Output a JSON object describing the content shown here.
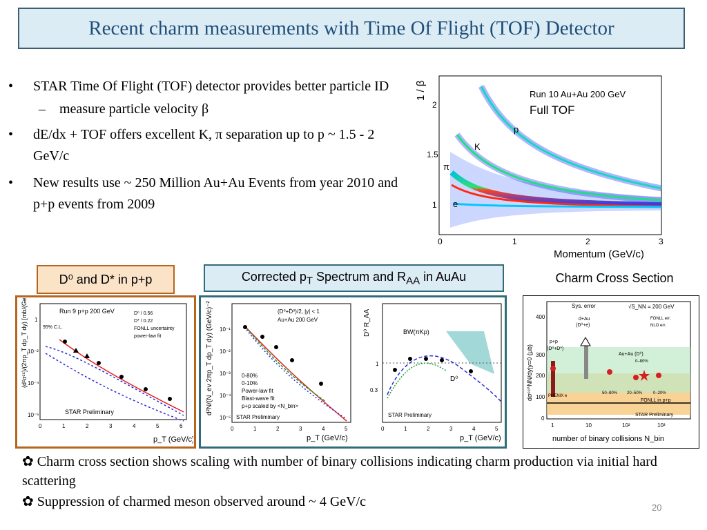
{
  "title": "Recent charm measurements with Time Of Flight (TOF) Detector",
  "bullets": [
    {
      "marker": "•",
      "text": "STAR Time Of Flight (TOF) detector provides better particle ID",
      "level": 1
    },
    {
      "marker": "–",
      "text": "measure particle velocity β",
      "level": 2
    },
    {
      "marker": "•",
      "text": "dE/dx + TOF  offers excellent K, π separation up to p ~ 1.5 - 2 GeV/c",
      "level": 1
    },
    {
      "marker": "•",
      "text": "New results use ~ 250 Million Au+Au Events from year 2010 and p+p events from 2009",
      "level": 1
    }
  ],
  "panel_labels": {
    "pp": "D⁰ and D* in p+p",
    "auau_prefix": "Corrected p",
    "auau_sub1": "T",
    "auau_mid": " Spectrum and R",
    "auau_sub2": "AA",
    "auau_suffix": " in AuAu",
    "cross": "Charm Cross Section"
  },
  "tof_plot": {
    "ylabel": "1 / β",
    "xlabel": "Momentum (GeV/c)",
    "run": "Run 10 Au+Au 200 GeV",
    "subtitle": "Full TOF",
    "species": [
      "p",
      "K",
      "π",
      "e"
    ],
    "xticks": [
      "0",
      "1",
      "2",
      "3"
    ],
    "yticks": [
      "1",
      "1.5",
      "2"
    ]
  },
  "pp_plot": {
    "ylabel": "(d²σᶜᶜ)/(2πp_T dp_T dy) [mb/(GeV/c)²]",
    "xlabel": "p_T (GeV/c)",
    "run": "Run 9 p+p 200 GeV",
    "cl": "95% C.L.",
    "legend": [
      "D⁰ / 0.56",
      "D* / 0.22",
      "FONLL uncertainty",
      "power-law fit"
    ],
    "footer": "STAR Preliminary",
    "xticks": [
      "0",
      "1",
      "2",
      "3",
      "4",
      "5",
      "6"
    ],
    "yticks": [
      "1",
      "10⁻²",
      "10⁻⁴",
      "10⁻⁶"
    ]
  },
  "spectrum_plot": {
    "ylabel": "d²N/(N_ev 2πp_T dp_T dy) (GeV/c)⁻²",
    "xlabel": "p_T (GeV/c)",
    "header1": "(D⁰+D̄⁰)/2, |y| < 1",
    "header2": "Au+Au 200 GeV",
    "legend": [
      "0-80%",
      "0-10%",
      "Power-law fit",
      "Blast-wave fit",
      "p+p scaled by <N_bin>"
    ],
    "footer": "STAR Preliminary",
    "xticks": [
      "0",
      "1",
      "2",
      "3",
      "4",
      "5"
    ],
    "yticks": [
      "10⁻¹",
      "10⁻²",
      "10⁻³",
      "10⁻⁴",
      "10⁻⁵"
    ]
  },
  "raa_plot": {
    "ylabel": "D⁰ R_AA",
    "xlabel": "p_T (GeV/c)",
    "model": "BW(πKp)",
    "particle": "D⁰",
    "footer": "STAR Preliminary",
    "xticks": [
      "0",
      "1",
      "2",
      "3",
      "4",
      "5"
    ],
    "yticks": [
      "0.3",
      "1"
    ]
  },
  "cross_plot": {
    "ylabel": "dσᶜᶜ^NN/dy|y=0 (μb)",
    "xlabel": "number of binary collisions N_bin",
    "legend_sys": "Sys. error",
    "energy": "√S_NN = 200 GeV",
    "fonll_err": "FONLL err.",
    "nlo_err": "NLO err.",
    "dau": "d+Au",
    "dau2": "(D⁰+e)",
    "pp": "p+p",
    "pp2": "(D⁰+D*)",
    "auau": "Au+Au (D⁰)",
    "c080": "0–80%",
    "c5080": "50–80%",
    "c2050": "20–50%",
    "c020": "0–20%",
    "phenix": "PHENIX e",
    "fonll_pp": "FONLL in p+p",
    "footer": "STAR Preliminary",
    "xticks": [
      "1",
      "10",
      "10²",
      "10³"
    ],
    "yticks": [
      "0",
      "100",
      "200",
      "300",
      "400"
    ]
  },
  "bottom": [
    {
      "marker": "✿",
      "text": "Charm cross section shows scaling with number of binary collisions indicating charm production via initial hard scattering"
    },
    {
      "marker": "✿",
      "text": "Suppression of charmed meson observed around ~ 4 GeV/c"
    }
  ],
  "page_number": "20",
  "colors": {
    "title_bg": "#dcecf5",
    "title_text": "#1f4e79",
    "pp_frame": "#b5651d",
    "auau_frame": "#2f6b7a"
  }
}
